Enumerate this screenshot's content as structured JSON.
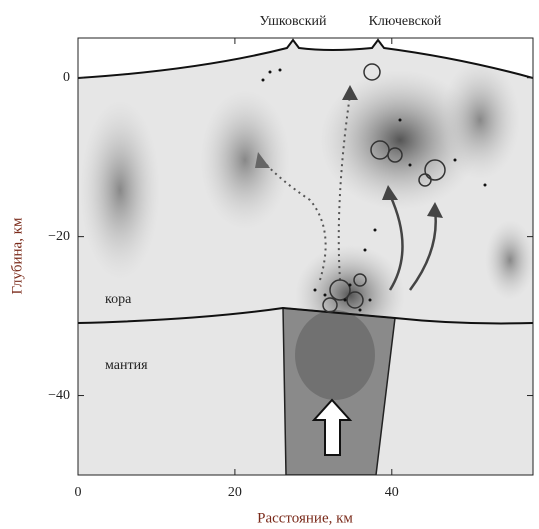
{
  "chart_data": {
    "type": "section",
    "xlabel": "Расстояние, км",
    "ylabel": "Глубина, км",
    "volcanoes": [
      "Ушковский",
      "Ключевской"
    ],
    "layers": [
      "кора",
      "мантия"
    ],
    "xlim": [
      0,
      58
    ],
    "ylim": [
      -50,
      5
    ],
    "xticks": [
      0,
      20,
      40
    ],
    "yticks": [
      {
        "value": 0,
        "label": "0"
      },
      {
        "value": -20,
        "label": "−20"
      },
      {
        "value": -40,
        "label": "−40"
      }
    ]
  }
}
